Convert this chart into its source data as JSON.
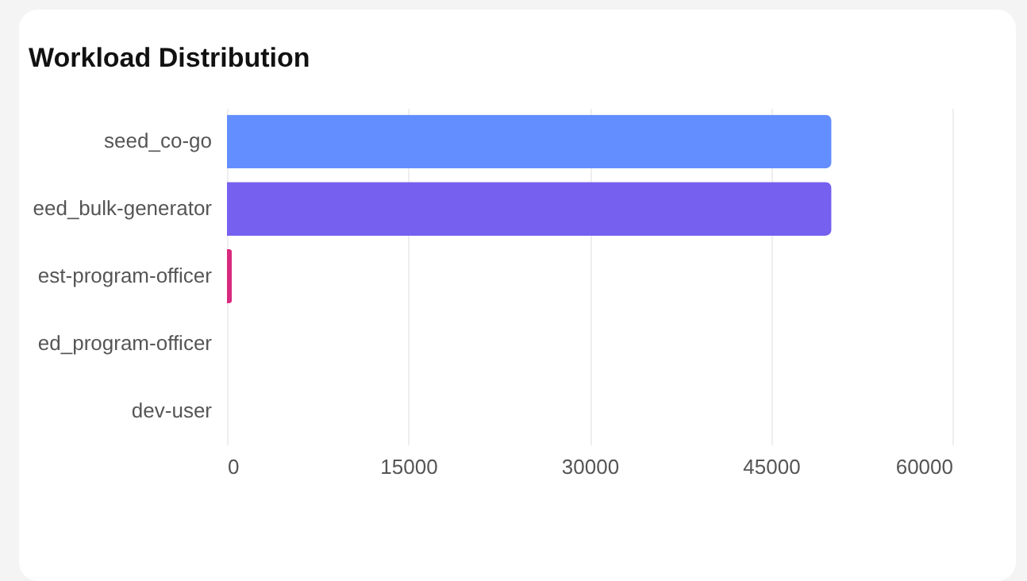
{
  "chart_data": {
    "type": "bar",
    "orientation": "horizontal",
    "title": "Workload Distribution",
    "categories": [
      "seed_co-go",
      "eed_bulk-generator",
      "est-program-officer",
      "ed_program-officer",
      "dev-user"
    ],
    "values": [
      50000,
      50000,
      400,
      0,
      0
    ],
    "colors": [
      "#638eff",
      "#7660ef",
      "#d92a7f",
      "#e9c46a",
      "#4fb3a9"
    ],
    "xlim": [
      0,
      60000
    ],
    "xticks": [
      0,
      15000,
      30000,
      45000,
      60000
    ],
    "grid": "x"
  }
}
